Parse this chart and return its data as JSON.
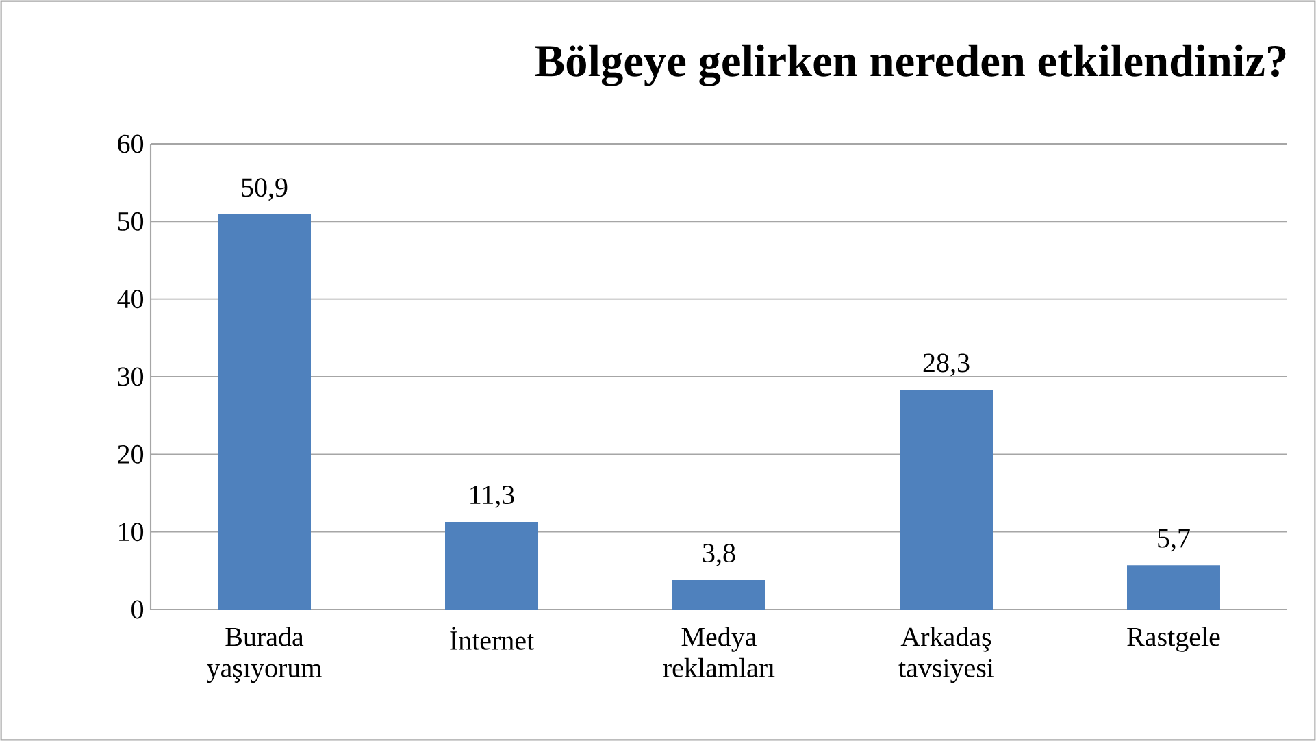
{
  "chart_data": {
    "type": "bar",
    "title": "Bölgeye gelirken nereden etkilendiniz?",
    "categories": [
      "Burada yaşıyorum",
      "İnternet",
      "Medya reklamları",
      "Arkadaş tavsiyesi",
      "Rastgele"
    ],
    "values": [
      50.9,
      11.3,
      3.8,
      28.3,
      5.7
    ],
    "value_labels": [
      "50,9",
      "11,3",
      "3,8",
      "28,3",
      "5,7"
    ],
    "color": "#4f81bd",
    "ylim": [
      0,
      60
    ],
    "yticks": [
      0,
      10,
      20,
      30,
      40,
      50,
      60
    ],
    "grid": "y"
  }
}
